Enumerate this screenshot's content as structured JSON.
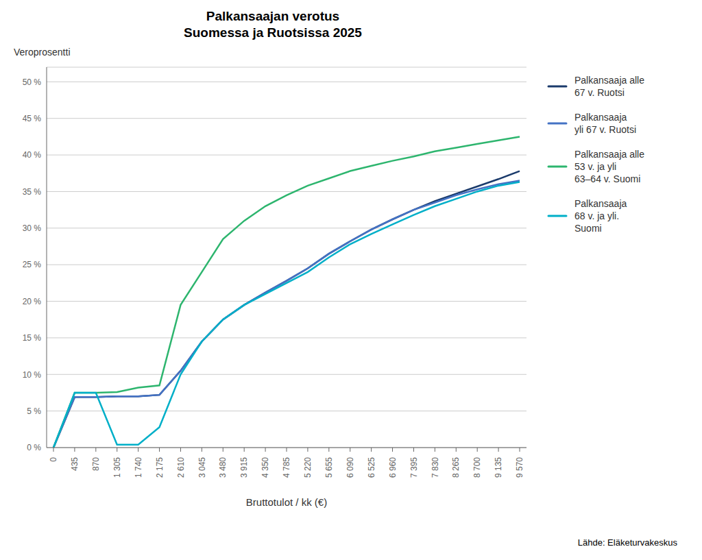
{
  "chart_data": {
    "type": "line",
    "title": "Palkansaajan verotus\nSuomessa ja Ruotsissa 2025",
    "ylabel": "Veroprosentti",
    "xlabel": "Bruttotulot / kk (€)",
    "annotations": [
      "Lähde: Eläketurvakeskus"
    ],
    "categories": [
      "0",
      "435",
      "870",
      "1 305",
      "1 740",
      "2 175",
      "2 610",
      "3 045",
      "3 480",
      "3 915",
      "4 350",
      "4 785",
      "5 220",
      "5 655",
      "6 090",
      "6 525",
      "6 960",
      "7 395",
      "7 830",
      "8 265",
      "8 700",
      "9 135",
      "9 570"
    ],
    "series": [
      {
        "name": "Palkansaaja alle\n67 v. Ruotsi",
        "color": "#1a3a6b",
        "values": [
          0.0,
          6.9,
          6.9,
          7.0,
          7.0,
          7.2,
          10.5,
          14.5,
          17.5,
          19.5,
          21.2,
          22.8,
          24.5,
          26.5,
          28.2,
          29.8,
          31.2,
          32.5,
          33.7,
          34.7,
          35.7,
          36.7,
          37.8
        ]
      },
      {
        "name": "Palkansaaja\nyli 67 v. Ruotsi",
        "color": "#4472c4",
        "values": [
          0.0,
          6.9,
          6.9,
          7.0,
          7.0,
          7.2,
          10.5,
          14.5,
          17.5,
          19.5,
          21.2,
          22.8,
          24.5,
          26.5,
          28.2,
          29.8,
          31.2,
          32.5,
          33.5,
          34.5,
          35.3,
          36.0,
          36.5
        ]
      },
      {
        "name": "Palkansaaja alle\n53 v. ja yli\n63–64 v. Suomi",
        "color": "#2db56e",
        "values": [
          0.0,
          7.5,
          7.5,
          7.6,
          8.2,
          8.5,
          19.5,
          24.0,
          28.5,
          31.0,
          33.0,
          34.5,
          35.8,
          36.8,
          37.8,
          38.5,
          39.2,
          39.8,
          40.5,
          41.0,
          41.5,
          42.0,
          42.5
        ]
      },
      {
        "name": "Palkansaaja\n68 v. ja yli.\nSuomi",
        "color": "#00afc8",
        "values": [
          0.0,
          7.5,
          7.5,
          0.4,
          0.4,
          2.8,
          10.0,
          14.5,
          17.5,
          19.5,
          21.0,
          22.5,
          24.0,
          26.0,
          27.8,
          29.2,
          30.5,
          31.8,
          33.0,
          34.0,
          35.0,
          35.8,
          36.3
        ]
      }
    ],
    "ylim": [
      0,
      52
    ],
    "yticks": [
      {
        "value": 0,
        "label": "0 %"
      },
      {
        "value": 5,
        "label": "5 %"
      },
      {
        "value": 10,
        "label": "10 %"
      },
      {
        "value": 15,
        "label": "15 %"
      },
      {
        "value": 20,
        "label": "20 %"
      },
      {
        "value": 25,
        "label": "25 %"
      },
      {
        "value": 30,
        "label": "30 %"
      },
      {
        "value": 35,
        "label": "35 %"
      },
      {
        "value": 40,
        "label": "40 %"
      },
      {
        "value": 45,
        "label": "45 %"
      },
      {
        "value": 50,
        "label": "50 %"
      }
    ],
    "grid": true,
    "legend": "right"
  }
}
